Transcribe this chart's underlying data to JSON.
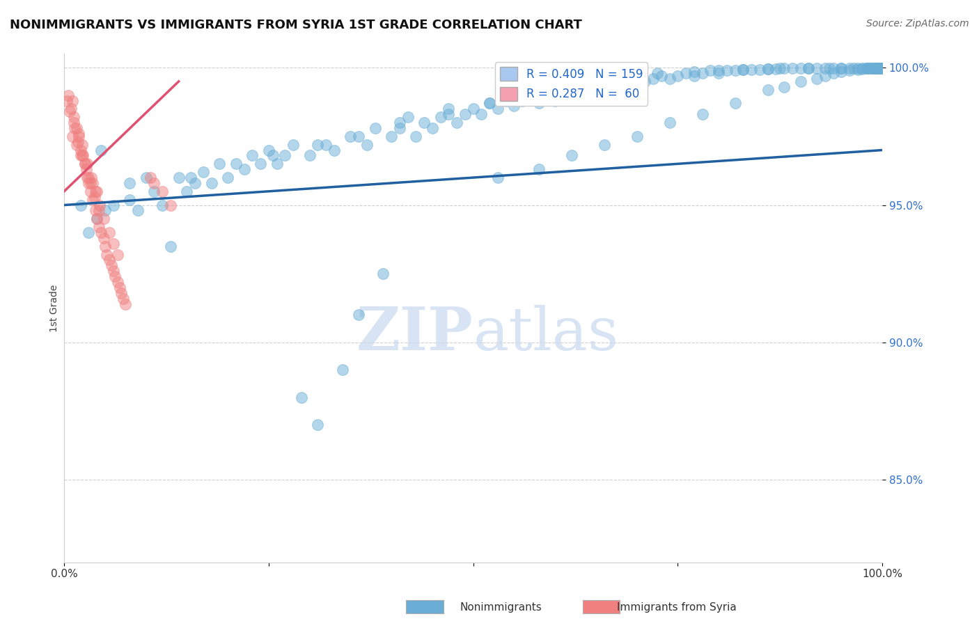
{
  "title": "NONIMMIGRANTS VS IMMIGRANTS FROM SYRIA 1ST GRADE CORRELATION CHART",
  "source_text": "Source: ZipAtlas.com",
  "ylabel": "1st Grade",
  "xlim": [
    0.0,
    1.0
  ],
  "ylim": [
    0.82,
    1.005
  ],
  "yticks": [
    0.85,
    0.9,
    0.95,
    1.0
  ],
  "ytick_labels": [
    "85.0%",
    "90.0%",
    "95.0%",
    "100.0%"
  ],
  "legend_entries": [
    {
      "label": "R = 0.409   N = 159",
      "color": "#a8c8f0"
    },
    {
      "label": "R = 0.287   N =  60",
      "color": "#f5a0b0"
    }
  ],
  "blue_color": "#6aaed6",
  "pink_color": "#f08080",
  "blue_line_color": "#2060a0",
  "pink_line_color": "#e05070",
  "grid_color": "#bbbbbb",
  "watermark_color": "#c8d8f0",
  "blue_scatter_x": [
    0.02,
    0.04,
    0.05,
    0.06,
    0.08,
    0.09,
    0.1,
    0.11,
    0.12,
    0.14,
    0.15,
    0.16,
    0.17,
    0.18,
    0.19,
    0.2,
    0.22,
    0.23,
    0.24,
    0.25,
    0.26,
    0.27,
    0.28,
    0.3,
    0.32,
    0.33,
    0.35,
    0.37,
    0.38,
    0.4,
    0.41,
    0.42,
    0.43,
    0.44,
    0.45,
    0.46,
    0.47,
    0.48,
    0.49,
    0.5,
    0.51,
    0.52,
    0.53,
    0.54,
    0.55,
    0.56,
    0.57,
    0.58,
    0.59,
    0.6,
    0.61,
    0.62,
    0.63,
    0.64,
    0.65,
    0.66,
    0.67,
    0.68,
    0.69,
    0.7,
    0.71,
    0.72,
    0.73,
    0.74,
    0.75,
    0.76,
    0.77,
    0.78,
    0.79,
    0.8,
    0.81,
    0.82,
    0.83,
    0.84,
    0.85,
    0.86,
    0.87,
    0.88,
    0.89,
    0.9,
    0.91,
    0.92,
    0.93,
    0.94,
    0.95,
    0.96,
    0.97,
    0.98,
    0.99,
    0.995,
    0.03,
    0.13,
    0.29,
    0.31,
    0.34,
    0.36,
    0.39,
    0.53,
    0.58,
    0.62,
    0.66,
    0.7,
    0.74,
    0.78,
    0.82,
    0.86,
    0.88,
    0.9,
    0.92,
    0.93,
    0.94,
    0.95,
    0.96,
    0.97,
    0.975,
    0.98,
    0.982,
    0.984,
    0.986,
    0.988,
    0.99,
    0.991,
    0.992,
    0.993,
    0.994,
    0.995,
    0.996,
    0.997,
    0.998,
    0.999,
    0.9995,
    0.045,
    0.08,
    0.155,
    0.21,
    0.255,
    0.31,
    0.36,
    0.41,
    0.47,
    0.52,
    0.56,
    0.61,
    0.65,
    0.69,
    0.725,
    0.77,
    0.8,
    0.83,
    0.86,
    0.875,
    0.91,
    0.935,
    0.95,
    0.965,
    0.975,
    0.985,
    0.992,
    0.997
  ],
  "blue_scatter_y": [
    0.95,
    0.945,
    0.948,
    0.95,
    0.952,
    0.948,
    0.96,
    0.955,
    0.95,
    0.96,
    0.955,
    0.958,
    0.962,
    0.958,
    0.965,
    0.96,
    0.963,
    0.968,
    0.965,
    0.97,
    0.965,
    0.968,
    0.972,
    0.968,
    0.972,
    0.97,
    0.975,
    0.972,
    0.978,
    0.975,
    0.978,
    0.982,
    0.975,
    0.98,
    0.978,
    0.982,
    0.985,
    0.98,
    0.983,
    0.985,
    0.983,
    0.987,
    0.985,
    0.988,
    0.986,
    0.988,
    0.99,
    0.987,
    0.99,
    0.988,
    0.992,
    0.99,
    0.993,
    0.991,
    0.993,
    0.994,
    0.993,
    0.995,
    0.994,
    0.996,
    0.995,
    0.996,
    0.997,
    0.996,
    0.997,
    0.998,
    0.997,
    0.998,
    0.999,
    0.998,
    0.999,
    0.999,
    0.9992,
    0.9993,
    0.9994,
    0.9995,
    0.9996,
    0.9997,
    0.9997,
    0.9998,
    0.9998,
    0.9998,
    0.9999,
    0.9999,
    0.9999,
    0.9999,
    0.9999,
    0.9999,
    0.9999,
    0.9999,
    0.94,
    0.935,
    0.88,
    0.87,
    0.89,
    0.91,
    0.925,
    0.96,
    0.963,
    0.968,
    0.972,
    0.975,
    0.98,
    0.983,
    0.987,
    0.992,
    0.993,
    0.995,
    0.996,
    0.997,
    0.998,
    0.9985,
    0.999,
    0.9993,
    0.9995,
    0.9997,
    0.9998,
    0.9998,
    0.9999,
    0.9999,
    0.9999,
    0.9999,
    0.9999,
    0.9999,
    0.9999,
    0.9999,
    0.9999,
    0.9999,
    0.9999,
    0.9999,
    0.9999,
    0.97,
    0.958,
    0.96,
    0.965,
    0.968,
    0.972,
    0.975,
    0.98,
    0.983,
    0.987,
    0.99,
    0.993,
    0.995,
    0.997,
    0.998,
    0.9985,
    0.999,
    0.9993,
    0.9995,
    0.9997,
    0.9998,
    0.9998,
    0.9999,
    0.9999,
    0.9999,
    0.9999,
    0.9999,
    0.9999
  ],
  "pink_scatter_x": [
    0.005,
    0.008,
    0.01,
    0.012,
    0.015,
    0.018,
    0.02,
    0.022,
    0.025,
    0.028,
    0.03,
    0.032,
    0.035,
    0.038,
    0.04,
    0.042,
    0.045,
    0.048,
    0.05,
    0.052,
    0.055,
    0.058,
    0.06,
    0.062,
    0.065,
    0.068,
    0.07,
    0.072,
    0.075,
    0.01,
    0.015,
    0.02,
    0.025,
    0.03,
    0.035,
    0.04,
    0.012,
    0.018,
    0.022,
    0.028,
    0.033,
    0.038,
    0.043,
    0.048,
    0.055,
    0.06,
    0.065,
    0.105,
    0.11,
    0.12,
    0.13,
    0.003,
    0.007,
    0.013,
    0.017,
    0.023,
    0.027,
    0.032,
    0.037,
    0.042
  ],
  "pink_scatter_y": [
    0.99,
    0.985,
    0.988,
    0.982,
    0.978,
    0.975,
    0.97,
    0.968,
    0.965,
    0.96,
    0.958,
    0.955,
    0.952,
    0.948,
    0.945,
    0.942,
    0.94,
    0.938,
    0.935,
    0.932,
    0.93,
    0.928,
    0.926,
    0.924,
    0.922,
    0.92,
    0.918,
    0.916,
    0.914,
    0.975,
    0.972,
    0.968,
    0.965,
    0.96,
    0.958,
    0.955,
    0.98,
    0.976,
    0.972,
    0.965,
    0.96,
    0.955,
    0.95,
    0.945,
    0.94,
    0.936,
    0.932,
    0.96,
    0.958,
    0.955,
    0.95,
    0.988,
    0.984,
    0.978,
    0.973,
    0.968,
    0.963,
    0.958,
    0.953,
    0.948
  ],
  "blue_trendline_x": [
    0.0,
    1.0
  ],
  "blue_trendline_y": [
    0.95,
    0.97
  ],
  "pink_trendline_x": [
    0.0,
    0.14
  ],
  "pink_trendline_y": [
    0.955,
    0.995
  ]
}
